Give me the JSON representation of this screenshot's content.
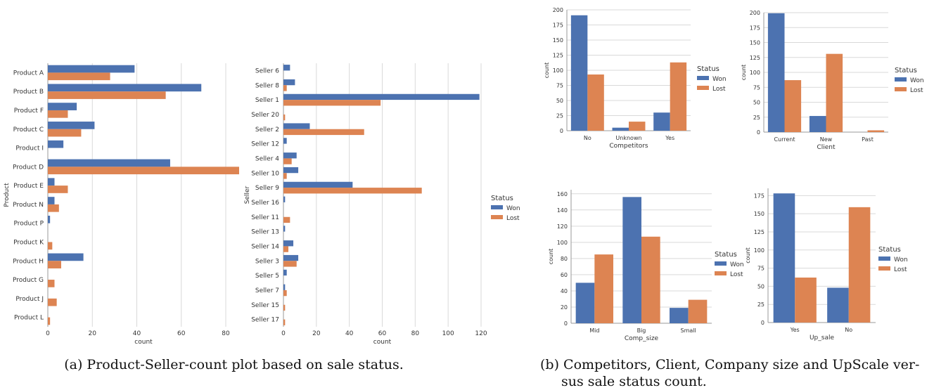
{
  "colors": {
    "won": "#4c72b0",
    "lost": "#dd8452",
    "grid": "#d9d9d9",
    "axis": "#999999"
  },
  "captions": {
    "a": "(a) Product-Seller-count plot based on sale status.",
    "b_line1": "(b) Competitors, Client, Company size and UpScale ver-",
    "b_line2": "sus sale status count."
  },
  "chart_data": [
    {
      "type": "bar",
      "orientation": "horizontal",
      "ylabel": "Product",
      "xlabel": "count",
      "xlim": [
        0,
        86
      ],
      "xticks": [
        0,
        20,
        40,
        60,
        80
      ],
      "grid": true,
      "categories": [
        "Product A",
        "Product B",
        "Product F",
        "Product C",
        "Product I",
        "Product D",
        "Product E",
        "Product N",
        "Product P",
        "Product K",
        "Product H",
        "Product G",
        "Product J",
        "Product L"
      ],
      "series": [
        {
          "name": "Won",
          "values": [
            39,
            69,
            13,
            21,
            7,
            55,
            3,
            3,
            1,
            0,
            16,
            0,
            0,
            0
          ]
        },
        {
          "name": "Lost",
          "values": [
            28,
            53,
            9,
            15,
            0,
            86,
            9,
            5,
            0,
            2,
            6,
            3,
            4,
            1
          ]
        }
      ]
    },
    {
      "type": "bar",
      "orientation": "horizontal",
      "ylabel": "Seller",
      "xlabel": "count",
      "xlim": [
        0,
        120
      ],
      "xticks": [
        0,
        20,
        40,
        60,
        80,
        100,
        120
      ],
      "grid": true,
      "legend": {
        "title": "Status",
        "entries": [
          "Won",
          "Lost"
        ],
        "placement": "right"
      },
      "categories": [
        "Seller 6",
        "Seller 8",
        "Seller 1",
        "Seller 20",
        "Seller 2",
        "Seller 12",
        "Seller 4",
        "Seller 10",
        "Seller 9",
        "Seller 16",
        "Seller 11",
        "Seller 13",
        "Seller 14",
        "Seller 3",
        "Seller 5",
        "Seller 7",
        "Seller 15",
        "Seller 17"
      ],
      "series": [
        {
          "name": "Won",
          "values": [
            4,
            7,
            119,
            0,
            16,
            2,
            8,
            9,
            42,
            1,
            0,
            1,
            6,
            9,
            2,
            1,
            0,
            0
          ]
        },
        {
          "name": "Lost",
          "values": [
            0,
            2,
            59,
            1,
            49,
            0,
            5,
            2,
            84,
            0,
            4,
            0,
            3,
            8,
            0,
            2,
            1,
            1
          ]
        }
      ]
    },
    {
      "type": "bar",
      "orientation": "vertical",
      "xlabel": "Competitors",
      "ylabel": "count",
      "ylim": [
        0,
        200
      ],
      "yticks": [
        0,
        25,
        50,
        75,
        100,
        125,
        150,
        175,
        200
      ],
      "grid": true,
      "legend": {
        "title": "Status",
        "entries": [
          "Won",
          "Lost"
        ],
        "placement": "right"
      },
      "categories": [
        "No",
        "Unknown",
        "Yes"
      ],
      "series": [
        {
          "name": "Won",
          "values": [
            191,
            5,
            30
          ]
        },
        {
          "name": "Lost",
          "values": [
            93,
            15,
            113
          ]
        }
      ]
    },
    {
      "type": "bar",
      "orientation": "vertical",
      "xlabel": "Client",
      "ylabel": "count",
      "ylim": [
        0,
        200
      ],
      "yticks": [
        0,
        25,
        50,
        75,
        100,
        125,
        150,
        175,
        200
      ],
      "grid": true,
      "legend": {
        "title": "Status",
        "entries": [
          "Won",
          "Lost"
        ],
        "placement": "right"
      },
      "categories": [
        "Current",
        "New",
        "Past"
      ],
      "series": [
        {
          "name": "Won",
          "values": [
            199,
            27,
            0
          ]
        },
        {
          "name": "Lost",
          "values": [
            87,
            131,
            3
          ]
        }
      ]
    },
    {
      "type": "bar",
      "orientation": "vertical",
      "xlabel": "Comp_size",
      "ylabel": "count",
      "ylim": [
        0,
        165
      ],
      "yticks": [
        0,
        20,
        40,
        60,
        80,
        100,
        120,
        140,
        160
      ],
      "grid": true,
      "legend": {
        "title": "Status",
        "entries": [
          "Won",
          "Lost"
        ],
        "placement": "right"
      },
      "categories": [
        "Mid",
        "Big",
        "Small"
      ],
      "series": [
        {
          "name": "Won",
          "values": [
            50,
            156,
            19
          ]
        },
        {
          "name": "Lost",
          "values": [
            85,
            107,
            29
          ]
        }
      ]
    },
    {
      "type": "bar",
      "orientation": "vertical",
      "xlabel": "Up_sale",
      "ylabel": "count",
      "ylim": [
        0,
        185
      ],
      "yticks": [
        0,
        25,
        50,
        75,
        100,
        125,
        150,
        175
      ],
      "grid": true,
      "legend": {
        "title": "Status",
        "entries": [
          "Won",
          "Lost"
        ],
        "placement": "right"
      },
      "categories": [
        "Yes",
        "No"
      ],
      "series": [
        {
          "name": "Won",
          "values": [
            178,
            48
          ]
        },
        {
          "name": "Lost",
          "values": [
            62,
            159
          ]
        }
      ]
    }
  ]
}
